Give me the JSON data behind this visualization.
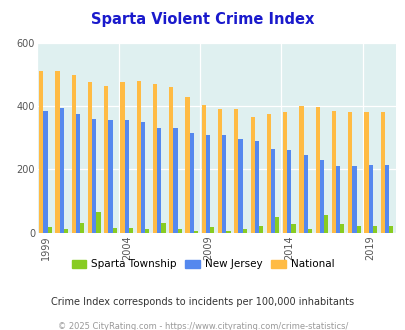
{
  "title": "Sparta Violent Crime Index",
  "title_color": "#1a1acc",
  "background_color": "#dff0f0",
  "outer_background": "#ffffff",
  "years": [
    1999,
    2000,
    2001,
    2002,
    2003,
    2004,
    2005,
    2006,
    2007,
    2008,
    2009,
    2010,
    2011,
    2012,
    2013,
    2014,
    2015,
    2016,
    2017,
    2018,
    2019,
    2020
  ],
  "sparta": [
    18,
    10,
    30,
    65,
    15,
    15,
    10,
    30,
    10,
    5,
    18,
    5,
    10,
    20,
    50,
    28,
    12,
    55,
    28,
    20,
    20,
    20
  ],
  "new_jersey": [
    385,
    395,
    375,
    360,
    355,
    355,
    350,
    330,
    330,
    315,
    310,
    310,
    295,
    290,
    265,
    260,
    245,
    230,
    210,
    210,
    215,
    215
  ],
  "national": [
    510,
    510,
    500,
    475,
    465,
    475,
    480,
    470,
    460,
    430,
    405,
    390,
    390,
    365,
    375,
    380,
    400,
    398,
    385,
    380,
    380,
    380
  ],
  "sparta_color": "#88cc22",
  "nj_color": "#5588ee",
  "national_color": "#ffbb44",
  "ylim": [
    0,
    600
  ],
  "yticks": [
    0,
    200,
    400,
    600
  ],
  "xlabel_ticks": [
    1999,
    2004,
    2009,
    2014,
    2019
  ],
  "legend_labels": [
    "Sparta Township",
    "New Jersey",
    "National"
  ],
  "footnote1": "Crime Index corresponds to incidents per 100,000 inhabitants",
  "footnote2": "© 2025 CityRating.com - https://www.cityrating.com/crime-statistics/",
  "footnote1_color": "#333333",
  "footnote2_color": "#999999",
  "title_fontsize": 10.5,
  "footnote1_fontsize": 7.0,
  "footnote2_fontsize": 6.0,
  "legend_fontsize": 7.5
}
